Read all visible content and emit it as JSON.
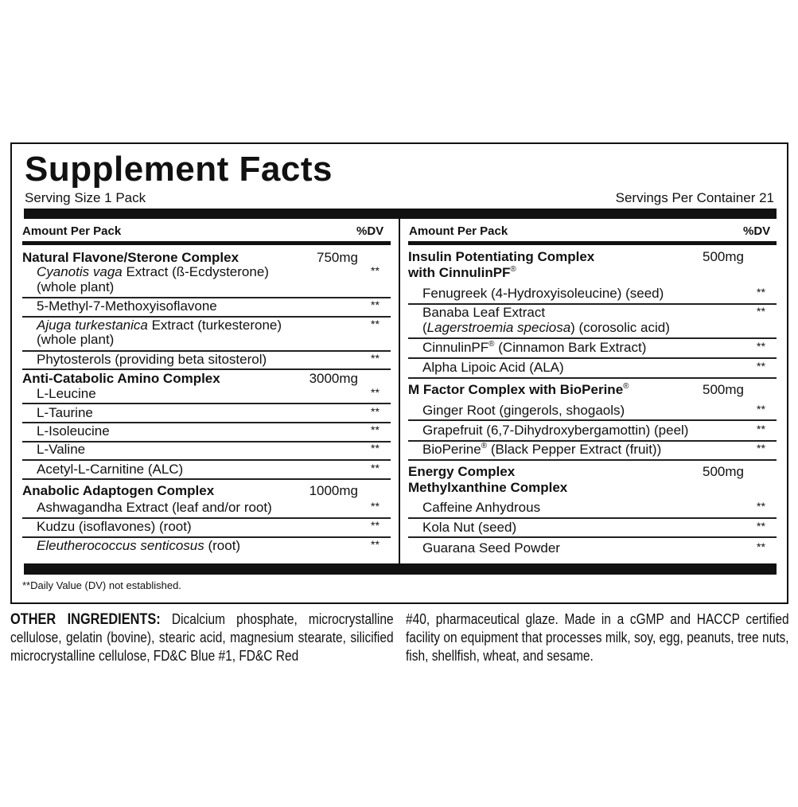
{
  "title": "Supplement Facts",
  "serving_size": "Serving Size 1 Pack",
  "servings_per_container": "Servings Per Container 21",
  "amount_header": "Amount Per Pack",
  "dv_header": "%DV",
  "footnote": "**Daily Value (DV) not established.",
  "left": [
    {
      "type": "group",
      "lines": [
        [
          {
            "t": "Natural Flavone/Sterone Complex"
          }
        ]
      ],
      "amount": "750mg"
    },
    {
      "type": "item",
      "lines": [
        [
          {
            "t": "Cyanotis vaga",
            "i": true
          },
          {
            "t": " Extract (ß-Ecdysterone)"
          }
        ],
        [
          {
            "t": "(whole plant)"
          }
        ]
      ],
      "dv": "**"
    },
    {
      "type": "item",
      "lines": [
        [
          {
            "t": "5-Methyl-7-Methoxyisoflavone"
          }
        ]
      ],
      "dv": "**"
    },
    {
      "type": "item",
      "lines": [
        [
          {
            "t": "Ajuga turkestanica",
            "i": true
          },
          {
            "t": " Extract (turkesterone)"
          }
        ],
        [
          {
            "t": "(whole plant)"
          }
        ]
      ],
      "dv": "**"
    },
    {
      "type": "item",
      "lines": [
        [
          {
            "t": "Phytosterols (providing beta sitosterol)"
          }
        ]
      ],
      "dv": "**"
    },
    {
      "type": "group",
      "lines": [
        [
          {
            "t": "Anti-Catabolic Amino Complex"
          }
        ]
      ],
      "amount": "3000mg"
    },
    {
      "type": "item",
      "lines": [
        [
          {
            "t": "L-Leucine"
          }
        ]
      ],
      "dv": "**"
    },
    {
      "type": "item",
      "lines": [
        [
          {
            "t": "L-Taurine"
          }
        ]
      ],
      "dv": "**"
    },
    {
      "type": "item",
      "lines": [
        [
          {
            "t": "L-Isoleucine"
          }
        ]
      ],
      "dv": "**"
    },
    {
      "type": "item",
      "lines": [
        [
          {
            "t": "L-Valine"
          }
        ]
      ],
      "dv": "**"
    },
    {
      "type": "item",
      "lines": [
        [
          {
            "t": "Acetyl-L-Carnitine (ALC)"
          }
        ]
      ],
      "dv": "**"
    },
    {
      "type": "group",
      "lines": [
        [
          {
            "t": "Anabolic Adaptogen Complex"
          }
        ]
      ],
      "amount": "1000mg"
    },
    {
      "type": "item",
      "lines": [
        [
          {
            "t": "Ashwagandha Extract (leaf and/or root)"
          }
        ]
      ],
      "dv": "**"
    },
    {
      "type": "item",
      "lines": [
        [
          {
            "t": "Kudzu (isoflavones) (root)"
          }
        ]
      ],
      "dv": "**"
    },
    {
      "type": "item",
      "lines": [
        [
          {
            "t": "Eleutherococcus senticosus",
            "i": true
          },
          {
            "t": " (root)"
          }
        ]
      ],
      "dv": "**"
    }
  ],
  "right": [
    {
      "type": "group",
      "lines": [
        [
          {
            "t": "Insulin Potentiating Complex"
          }
        ],
        [
          {
            "t": "with CinnulinPF"
          },
          {
            "t": "®",
            "sup": true
          }
        ]
      ],
      "amount": "500mg"
    },
    {
      "type": "item",
      "lines": [
        [
          {
            "t": "Fenugreek (4-Hydroxyisoleucine) (seed)"
          }
        ]
      ],
      "dv": "**"
    },
    {
      "type": "item",
      "lines": [
        [
          {
            "t": "Banaba Leaf Extract"
          }
        ],
        [
          {
            "t": "("
          },
          {
            "t": "Lagerstroemia speciosa",
            "i": true
          },
          {
            "t": ") (corosolic acid)"
          }
        ]
      ],
      "dv": "**"
    },
    {
      "type": "item",
      "lines": [
        [
          {
            "t": "CinnulinPF"
          },
          {
            "t": "®",
            "sup": true
          },
          {
            "t": " (Cinnamon Bark Extract)"
          }
        ]
      ],
      "dv": "**"
    },
    {
      "type": "item",
      "lines": [
        [
          {
            "t": "Alpha Lipoic Acid (ALA)"
          }
        ]
      ],
      "dv": "**"
    },
    {
      "type": "group",
      "lines": [
        [
          {
            "t": "M Factor Complex with BioPerine"
          },
          {
            "t": "®",
            "sup": true
          }
        ]
      ],
      "amount": "500mg"
    },
    {
      "type": "item",
      "lines": [
        [
          {
            "t": "Ginger Root (gingerols, shogaols)"
          }
        ]
      ],
      "dv": "**"
    },
    {
      "type": "item",
      "lines": [
        [
          {
            "t": "Grapefruit (6,7-Dihydroxybergamottin) (peel)"
          }
        ]
      ],
      "dv": "**"
    },
    {
      "type": "item",
      "lines": [
        [
          {
            "t": "BioPerine"
          },
          {
            "t": "®",
            "sup": true
          },
          {
            "t": " (Black Pepper Extract (fruit))"
          }
        ]
      ],
      "dv": "**"
    },
    {
      "type": "group",
      "lines": [
        [
          {
            "t": "Energy Complex"
          }
        ],
        [
          {
            "t": "Methylxanthine Complex"
          }
        ]
      ],
      "amount": "500mg"
    },
    {
      "type": "item",
      "lines": [
        [
          {
            "t": "Caffeine Anhydrous"
          }
        ]
      ],
      "dv": "**"
    },
    {
      "type": "item",
      "lines": [
        [
          {
            "t": "Kola Nut (seed)"
          }
        ]
      ],
      "dv": "**"
    },
    {
      "type": "item",
      "lines": [
        [
          {
            "t": "Guarana Seed Powder"
          }
        ]
      ],
      "dv": "**"
    }
  ],
  "other_ingredients": {
    "label": "OTHER INGREDIENTS:",
    "col1": " Dicalcium phosphate, microcrystalline cellulose, gelatin (bovine), stearic acid, magnesium stearate, silicified microcrystalline cellulose, FD&C Blue #1, FD&C Red",
    "col2": "#40, pharmaceutical glaze. Made in a cGMP and HACCP certified facility on equipment that processes milk, soy, egg, peanuts, tree nuts, fish, shellfish, wheat, and sesame."
  }
}
